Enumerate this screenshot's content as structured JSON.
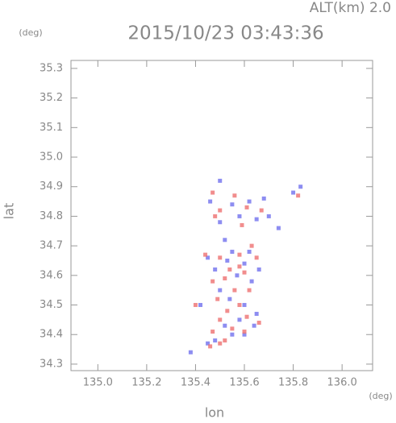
{
  "chart_data": {
    "type": "scatter",
    "title": "2015/10/23 03:43:36",
    "annotation": "ALT(km) 2.0",
    "y_unit": "(deg)",
    "x_unit": "(deg)",
    "xlabel": "lon",
    "ylabel": "lat",
    "xlim": [
      134.89,
      136.125
    ],
    "ylim": [
      34.278,
      35.327
    ],
    "xticks": [
      {
        "value": 135,
        "label": "135.0"
      },
      135.2,
      135.4,
      135.6,
      135.8,
      {
        "value": 136,
        "label": "136.0"
      }
    ],
    "yticks": [
      34.3,
      34.4,
      34.5,
      34.6,
      34.7,
      34.8,
      34.9,
      {
        "value": 35,
        "label": "35.0"
      },
      35.1,
      35.2,
      35.3
    ],
    "series": [
      {
        "color": "#7070ee",
        "x": [
          135.5,
          135.46,
          135.55,
          135.62,
          135.68,
          135.83,
          135.8,
          135.58,
          135.65,
          135.5,
          135.45,
          135.55,
          135.52,
          135.6,
          135.48,
          135.57,
          135.63,
          135.5,
          135.54,
          135.6,
          135.65,
          135.58,
          135.52,
          135.64,
          135.55,
          135.6,
          135.48,
          135.45,
          135.38,
          135.42,
          135.66,
          135.62,
          135.53,
          135.7,
          135.74
        ],
        "values": [
          34.92,
          34.85,
          34.84,
          34.85,
          34.86,
          34.9,
          34.88,
          34.8,
          34.79,
          34.78,
          34.66,
          34.68,
          34.72,
          34.64,
          34.62,
          34.6,
          34.58,
          34.55,
          34.52,
          34.5,
          34.47,
          34.45,
          34.43,
          34.43,
          34.4,
          34.4,
          34.38,
          34.37,
          34.34,
          34.5,
          34.62,
          34.68,
          34.65,
          34.8,
          34.76
        ]
      },
      {
        "color": "#ee7070",
        "x": [
          135.82,
          135.47,
          135.5,
          135.61,
          135.56,
          135.67,
          135.59,
          135.48,
          135.44,
          135.5,
          135.58,
          135.65,
          135.54,
          135.6,
          135.47,
          135.52,
          135.62,
          135.56,
          135.49,
          135.58,
          135.53,
          135.61,
          135.5,
          135.66,
          135.55,
          135.47,
          135.6,
          135.52,
          135.5,
          135.46,
          135.4,
          135.58,
          135.63
        ],
        "values": [
          34.87,
          34.88,
          34.82,
          34.83,
          34.87,
          34.82,
          34.77,
          34.8,
          34.67,
          34.66,
          34.67,
          34.66,
          34.62,
          34.61,
          34.58,
          34.59,
          34.55,
          34.55,
          34.52,
          34.5,
          34.48,
          34.46,
          34.45,
          34.44,
          34.42,
          34.41,
          34.41,
          34.38,
          34.37,
          34.36,
          34.5,
          34.63,
          34.7
        ]
      }
    ]
  }
}
